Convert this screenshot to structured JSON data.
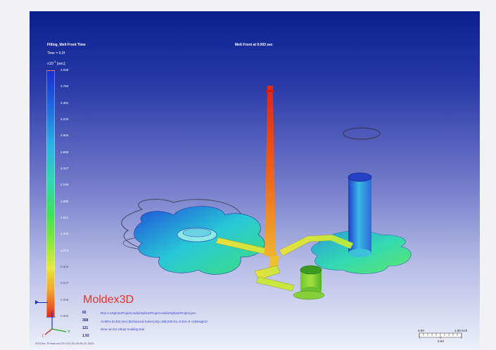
{
  "viewport": {
    "title": "Filling_Melt Front Time",
    "time_label": "Time = 0.0f",
    "unit_label": "x10",
    "unit_exp": "-1",
    "unit_sec": "[sec]",
    "melt_front": "Melt Front at     0.003 sec"
  },
  "colorbar": {
    "ticks": [
      "4.028",
      "3.760",
      "3.491",
      "3.223",
      "2.954",
      "2.686",
      "2.417",
      "2.148",
      "1.880",
      "1.611",
      "1.343",
      "1.074",
      "0.806",
      "0.537",
      "0.269",
      "0.000"
    ]
  },
  "logo": {
    "text": "Moldex",
    "sup": "3D"
  },
  "info": {
    "nums": [
      "65",
      "368",
      "121",
      "1.92"
    ],
    "lines": [
      "Run 1.eXplorerProject.mdxeXplorerProject.mdx\\eXplorerProject.pro",
      "At 80% (0.403 sec) (Enhanced Solver) Ep=158,049 Ec=0 Em=0 <eDesign2>",
      "New run for virtual molding trial",
      ""
    ]
  },
  "axes": {
    "z": "Z",
    "y": "Y",
    "x": "X"
  },
  "scale": {
    "left": "0.00",
    "right": "1.00  inch",
    "mid": "0.50"
  },
  "footer": "2013 for. D:\\melron\\120.1\\12.20.28-05-22-2020",
  "colors": {
    "logo": "#e2352b",
    "info": "#2b3fd4"
  }
}
